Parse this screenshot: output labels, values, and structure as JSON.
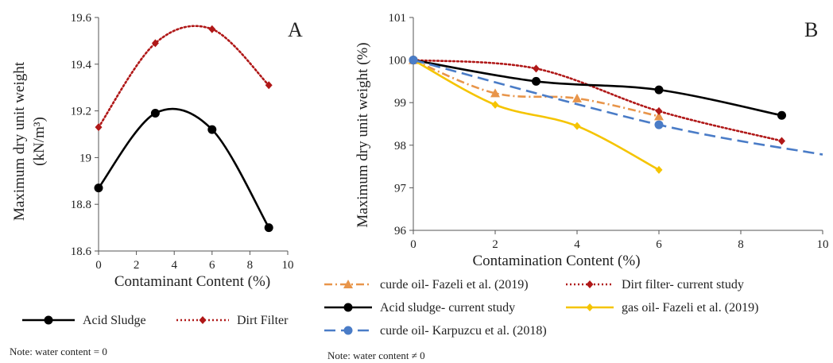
{
  "chart_data": [
    {
      "panel": "A",
      "type": "line",
      "xlabel": "Contaminant Content (%)",
      "ylabel_line1": "Maximum dry unit weight",
      "ylabel_line2": "(kN/m³)",
      "xlim": [
        0,
        10
      ],
      "ylim": [
        18.6,
        19.6
      ],
      "xticks": [
        0,
        2,
        4,
        6,
        8,
        10
      ],
      "yticks": [
        18.6,
        18.8,
        19,
        19.2,
        19.4,
        19.6
      ],
      "grid": false,
      "legend": "bottom",
      "note": "Note: water content = 0",
      "series": [
        {
          "name": "Acid Sludge",
          "color": "#000000",
          "marker": "circle",
          "dash": "solid",
          "x": [
            0,
            3,
            6,
            9
          ],
          "y": [
            18.87,
            19.19,
            19.12,
            18.7
          ]
        },
        {
          "name": "Dirt Filter",
          "color": "#b01818",
          "marker": "diamond",
          "dash": "dotted",
          "x": [
            0,
            3,
            6,
            9
          ],
          "y": [
            19.13,
            19.49,
            19.55,
            19.31
          ]
        }
      ]
    },
    {
      "panel": "B",
      "type": "line",
      "xlabel": "Contamination Content (%)",
      "ylabel": "Maximum dry unit weight (%)",
      "xlim": [
        0,
        10
      ],
      "ylim": [
        96,
        101
      ],
      "xticks": [
        0,
        2,
        4,
        6,
        8,
        10
      ],
      "yticks": [
        96,
        97,
        98,
        99,
        100,
        101
      ],
      "grid": false,
      "legend": "bottom",
      "note": "Note: water content ≠ 0",
      "series": [
        {
          "name": "curde oil- Fazeli et al. (2019)",
          "color": "#e8954a",
          "marker": "triangle",
          "dash": "dashdot",
          "x": [
            0,
            2,
            4,
            6
          ],
          "y": [
            100,
            99.22,
            99.1,
            98.68
          ]
        },
        {
          "name": "Dirt filter- current study",
          "color": "#b01818",
          "marker": "diamond",
          "dash": "dotted",
          "x": [
            0,
            3,
            6,
            9
          ],
          "y": [
            100,
            99.8,
            98.8,
            98.1
          ]
        },
        {
          "name": "Acid sludge- current study",
          "color": "#000000",
          "marker": "circle",
          "dash": "solid",
          "x": [
            0,
            3,
            6,
            9
          ],
          "y": [
            100,
            99.5,
            99.3,
            98.7
          ]
        },
        {
          "name": "gas oil- Fazeli et al. (2019)",
          "color": "#f5c400",
          "marker": "diamond",
          "dash": "solid",
          "x": [
            0,
            2,
            4,
            6
          ],
          "y": [
            100,
            98.95,
            98.45,
            97.42
          ]
        },
        {
          "name": "curde oil- Karpuzcu et al. (2018)",
          "color": "#4a7cc7",
          "marker": "circle",
          "dash": "longdash",
          "x": [
            0,
            6,
            10
          ],
          "y": [
            100,
            98.48,
            97.78
          ],
          "markers_at": [
            0,
            6
          ]
        }
      ]
    }
  ]
}
